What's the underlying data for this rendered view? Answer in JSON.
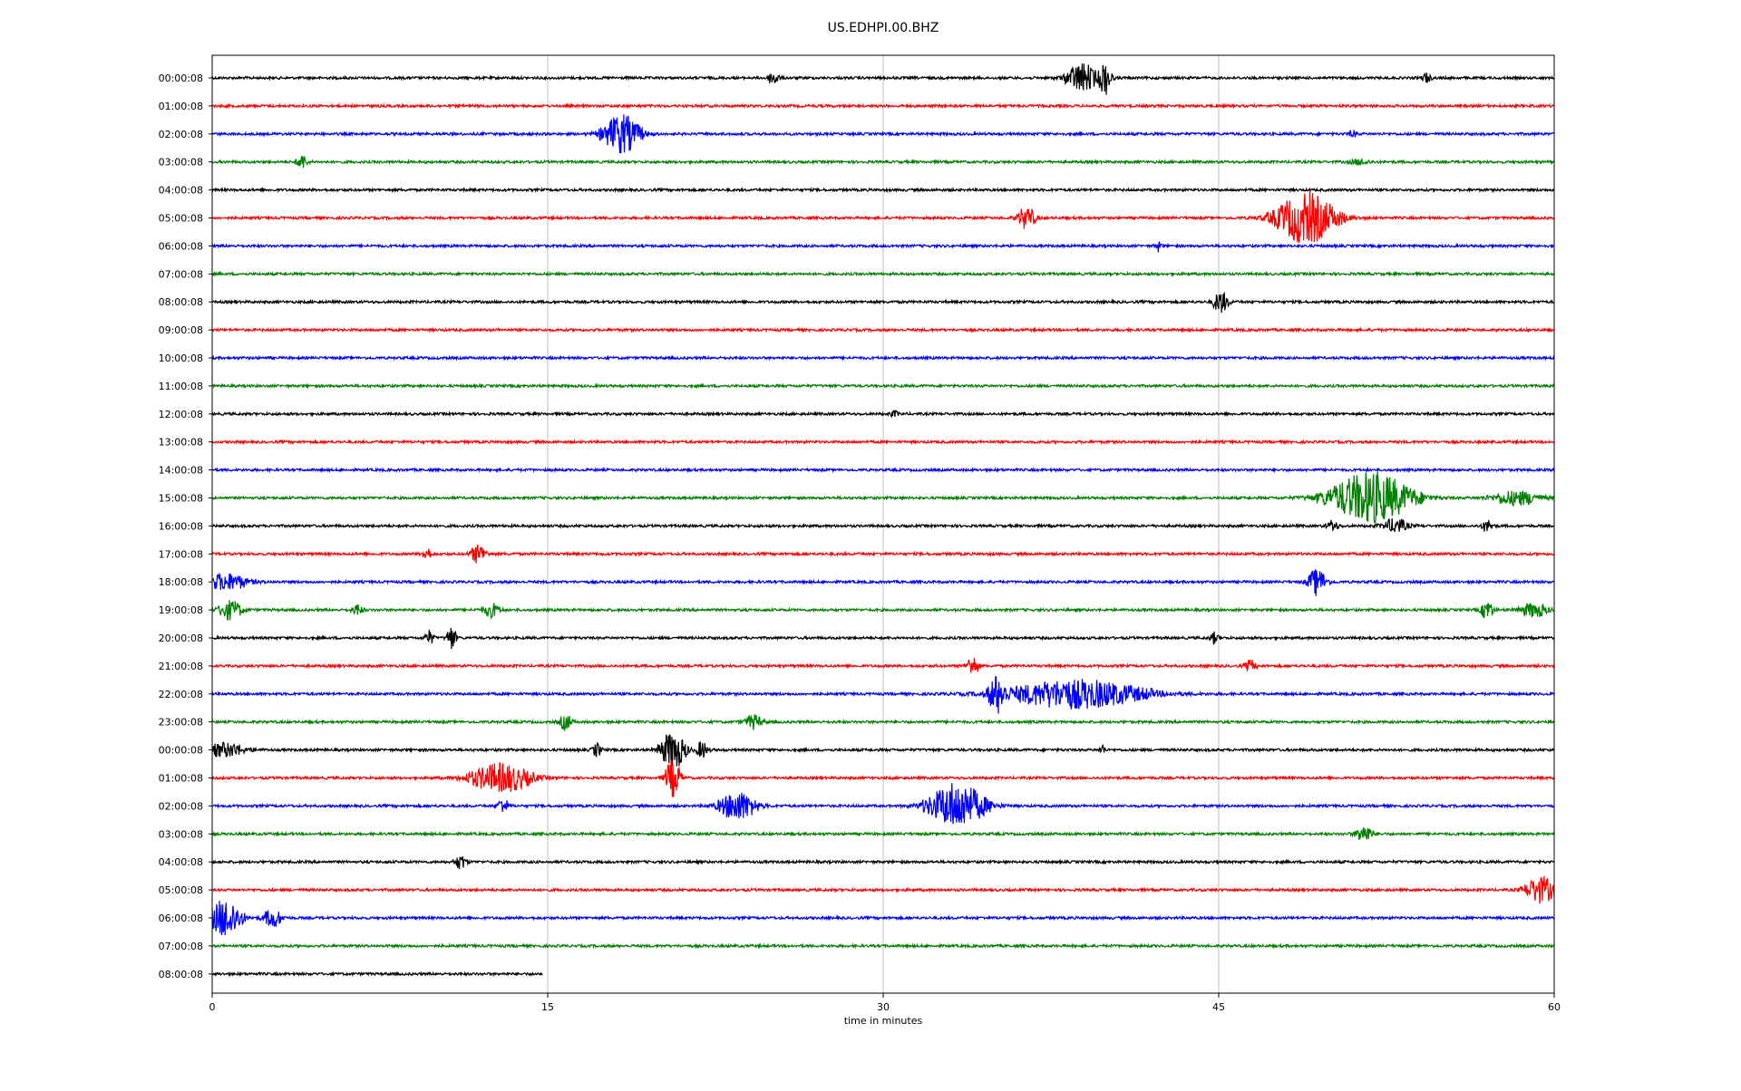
{
  "chart_data": {
    "type": "line",
    "title": "US.EDHPI.00.BHZ",
    "xlabel": "time in minutes",
    "ylabel": "",
    "xlim": [
      0,
      60
    ],
    "x_ticks": [
      0,
      15,
      30,
      45,
      60
    ],
    "x_tick_labels": [
      "0",
      "15",
      "30",
      "45",
      "60"
    ],
    "grid": "vertical",
    "trace_colors": [
      "#000000",
      "#ff0000",
      "#0000ff",
      "#008000"
    ],
    "row_labels": [
      "00:00:08",
      "01:00:08",
      "02:00:08",
      "03:00:08",
      "04:00:08",
      "05:00:08",
      "06:00:08",
      "07:00:08",
      "08:00:08",
      "09:00:08",
      "10:00:08",
      "11:00:08",
      "12:00:08",
      "13:00:08",
      "14:00:08",
      "15:00:08",
      "16:00:08",
      "17:00:08",
      "18:00:08",
      "19:00:08",
      "20:00:08",
      "21:00:08",
      "22:00:08",
      "23:00:08",
      "00:00:08",
      "01:00:08",
      "02:00:08",
      "03:00:08",
      "04:00:08",
      "05:00:08",
      "06:00:08",
      "07:00:08",
      "08:00:08"
    ],
    "last_row_end_minute": 14.8,
    "events": [
      {
        "row": 0,
        "t": 25.1,
        "amp": 0.5,
        "dur": 0.4
      },
      {
        "row": 0,
        "t": 38.9,
        "amp": 1.1,
        "dur": 1.0
      },
      {
        "row": 0,
        "t": 39.9,
        "amp": 1.3,
        "dur": 0.4
      },
      {
        "row": 0,
        "t": 54.3,
        "amp": 0.4,
        "dur": 0.3
      },
      {
        "row": 2,
        "t": 18.3,
        "amp": 1.5,
        "dur": 1.2
      },
      {
        "row": 2,
        "t": 51.0,
        "amp": 0.3,
        "dur": 0.3
      },
      {
        "row": 3,
        "t": 4.0,
        "amp": 0.5,
        "dur": 0.4
      },
      {
        "row": 3,
        "t": 51.3,
        "amp": 0.3,
        "dur": 0.6
      },
      {
        "row": 5,
        "t": 36.4,
        "amp": 0.8,
        "dur": 0.6
      },
      {
        "row": 5,
        "t": 48.9,
        "amp": 2.0,
        "dur": 1.9
      },
      {
        "row": 6,
        "t": 42.3,
        "amp": 0.4,
        "dur": 0.2
      },
      {
        "row": 8,
        "t": 45.1,
        "amp": 0.8,
        "dur": 0.5
      },
      {
        "row": 12,
        "t": 30.5,
        "amp": 0.3,
        "dur": 0.3
      },
      {
        "row": 15,
        "t": 51.8,
        "amp": 2.0,
        "dur": 2.6
      },
      {
        "row": 15,
        "t": 58.3,
        "amp": 0.5,
        "dur": 1.8
      },
      {
        "row": 16,
        "t": 50.1,
        "amp": 0.4,
        "dur": 0.4
      },
      {
        "row": 16,
        "t": 52.9,
        "amp": 0.5,
        "dur": 0.9
      },
      {
        "row": 16,
        "t": 57.0,
        "amp": 0.4,
        "dur": 0.4
      },
      {
        "row": 17,
        "t": 9.6,
        "amp": 0.5,
        "dur": 0.3
      },
      {
        "row": 17,
        "t": 11.9,
        "amp": 0.7,
        "dur": 0.5
      },
      {
        "row": 18,
        "t": 0.6,
        "amp": 0.6,
        "dur": 1.6
      },
      {
        "row": 18,
        "t": 49.4,
        "amp": 1.0,
        "dur": 0.6
      },
      {
        "row": 19,
        "t": 0.8,
        "amp": 0.7,
        "dur": 0.8
      },
      {
        "row": 19,
        "t": 6.5,
        "amp": 0.4,
        "dur": 0.4
      },
      {
        "row": 19,
        "t": 12.5,
        "amp": 0.5,
        "dur": 0.6
      },
      {
        "row": 19,
        "t": 57.0,
        "amp": 0.7,
        "dur": 0.4
      },
      {
        "row": 19,
        "t": 59.1,
        "amp": 0.5,
        "dur": 1.0
      },
      {
        "row": 20,
        "t": 9.7,
        "amp": 0.5,
        "dur": 0.3
      },
      {
        "row": 20,
        "t": 10.7,
        "amp": 0.9,
        "dur": 0.3
      },
      {
        "row": 20,
        "t": 44.8,
        "amp": 0.4,
        "dur": 0.3
      },
      {
        "row": 21,
        "t": 34.0,
        "amp": 0.7,
        "dur": 0.4
      },
      {
        "row": 21,
        "t": 46.4,
        "amp": 0.4,
        "dur": 0.4
      },
      {
        "row": 22,
        "t": 35.1,
        "amp": 1.5,
        "dur": 0.6
      },
      {
        "row": 22,
        "t": 38.6,
        "amp": 1.1,
        "dur": 4.5
      },
      {
        "row": 23,
        "t": 15.8,
        "amp": 0.6,
        "dur": 0.4
      },
      {
        "row": 23,
        "t": 24.2,
        "amp": 0.5,
        "dur": 0.6
      },
      {
        "row": 24,
        "t": 0.6,
        "amp": 0.5,
        "dur": 1.4
      },
      {
        "row": 24,
        "t": 17.2,
        "amp": 0.5,
        "dur": 0.3
      },
      {
        "row": 24,
        "t": 20.6,
        "amp": 1.5,
        "dur": 0.8
      },
      {
        "row": 24,
        "t": 21.9,
        "amp": 0.6,
        "dur": 0.4
      },
      {
        "row": 24,
        "t": 39.8,
        "amp": 0.4,
        "dur": 0.2
      },
      {
        "row": 25,
        "t": 12.9,
        "amp": 1.1,
        "dur": 2.0
      },
      {
        "row": 25,
        "t": 20.6,
        "amp": 1.4,
        "dur": 0.5
      },
      {
        "row": 26,
        "t": 13.0,
        "amp": 0.5,
        "dur": 0.4
      },
      {
        "row": 26,
        "t": 23.5,
        "amp": 1.1,
        "dur": 1.2
      },
      {
        "row": 26,
        "t": 33.3,
        "amp": 1.8,
        "dur": 1.8
      },
      {
        "row": 27,
        "t": 51.5,
        "amp": 0.6,
        "dur": 0.6
      },
      {
        "row": 28,
        "t": 11.1,
        "amp": 0.5,
        "dur": 0.4
      },
      {
        "row": 29,
        "t": 59.4,
        "amp": 1.0,
        "dur": 1.0
      },
      {
        "row": 30,
        "t": 0.6,
        "amp": 1.5,
        "dur": 1.0
      },
      {
        "row": 30,
        "t": 2.7,
        "amp": 0.7,
        "dur": 0.6
      }
    ]
  }
}
